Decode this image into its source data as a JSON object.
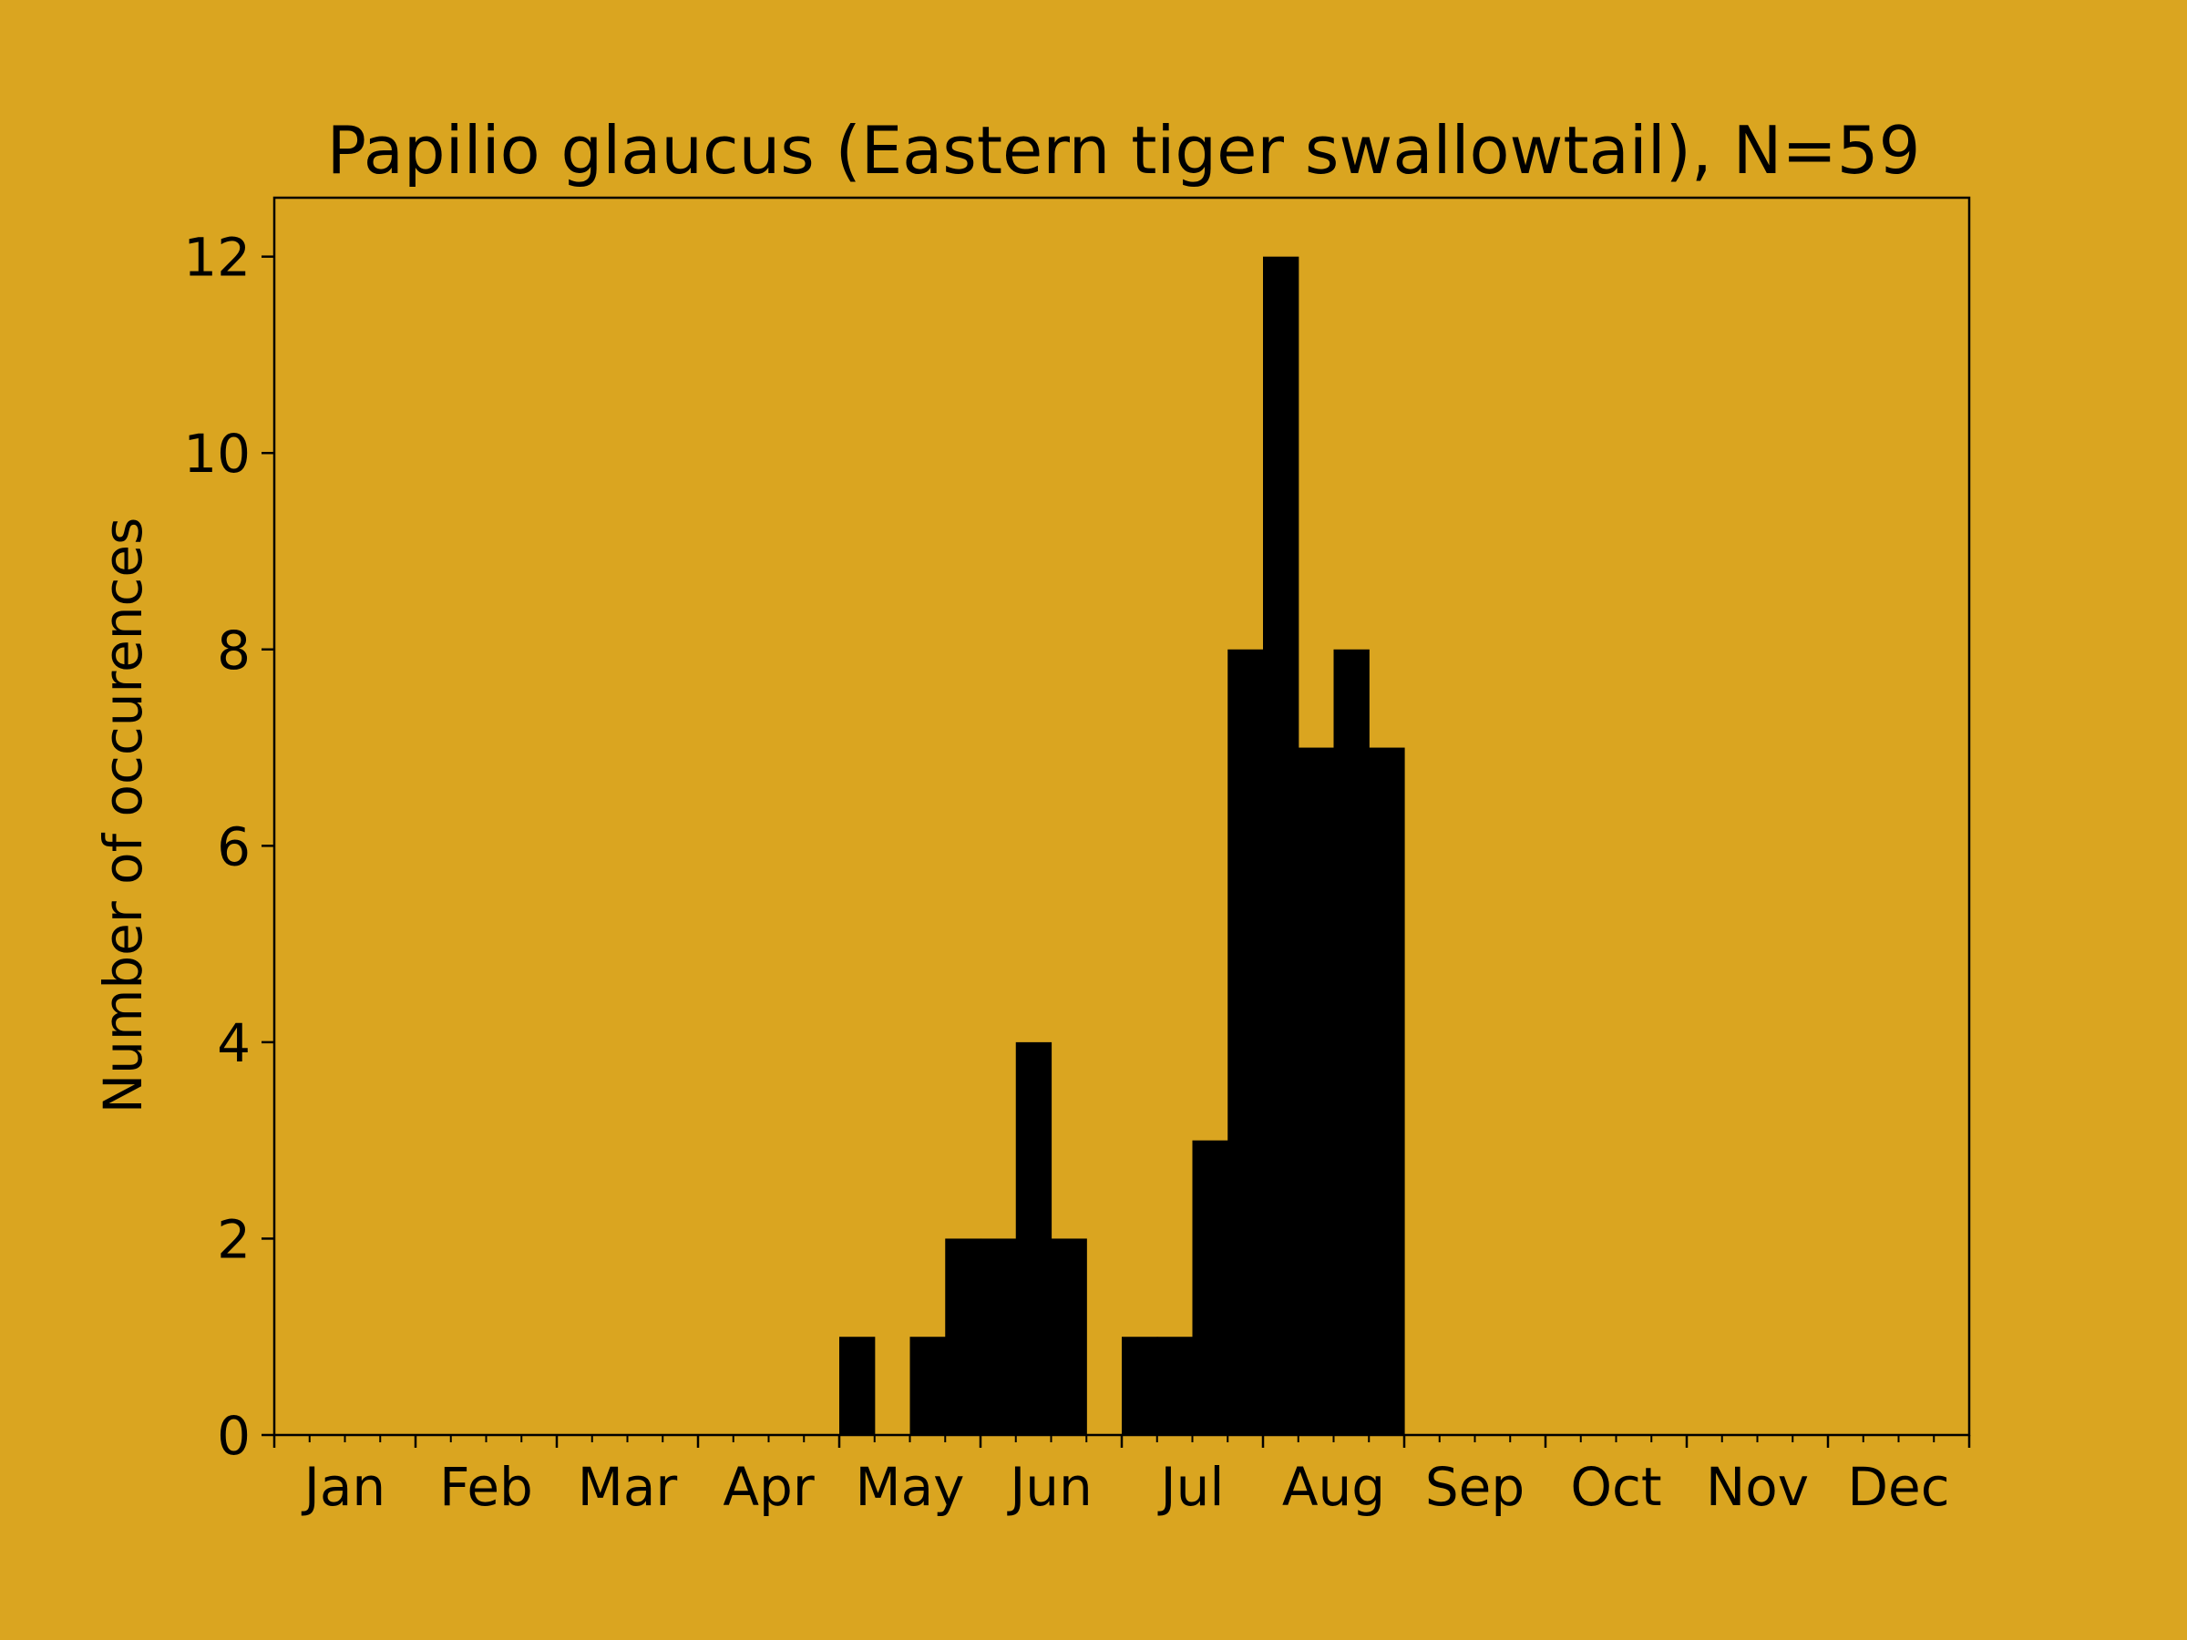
{
  "page": {
    "background": "#DAA520"
  },
  "chart_data": {
    "type": "bar",
    "title": "Papilio glaucus (Eastern tiger swallowtail), N=59",
    "xlabel": "",
    "ylabel": "Number of occurences",
    "bar_color": "#000000",
    "grid": false,
    "legend": "none",
    "x_domain": [
      0,
      48
    ],
    "ylim": [
      0,
      12.6
    ],
    "y_ticks": [
      0,
      2,
      4,
      6,
      8,
      10,
      12
    ],
    "month_labels": [
      "Jan",
      "Feb",
      "Mar",
      "Apr",
      "May",
      "Jun",
      "Jul",
      "Aug",
      "Sep",
      "Oct",
      "Nov",
      "Dec"
    ],
    "bin_unit": "week-of-year (4 bins per month, 48 bins total)",
    "bins": [
      {
        "start": 16,
        "value": 1
      },
      {
        "start": 18,
        "value": 1
      },
      {
        "start": 19,
        "value": 2
      },
      {
        "start": 20,
        "value": 2
      },
      {
        "start": 21,
        "value": 4
      },
      {
        "start": 22,
        "value": 2
      },
      {
        "start": 24,
        "value": 1
      },
      {
        "start": 25,
        "value": 1
      },
      {
        "start": 26,
        "value": 3
      },
      {
        "start": 27,
        "value": 8
      },
      {
        "start": 28,
        "value": 12
      },
      {
        "start": 29,
        "value": 7
      },
      {
        "start": 30,
        "value": 8
      },
      {
        "start": 31,
        "value": 7
      }
    ]
  }
}
